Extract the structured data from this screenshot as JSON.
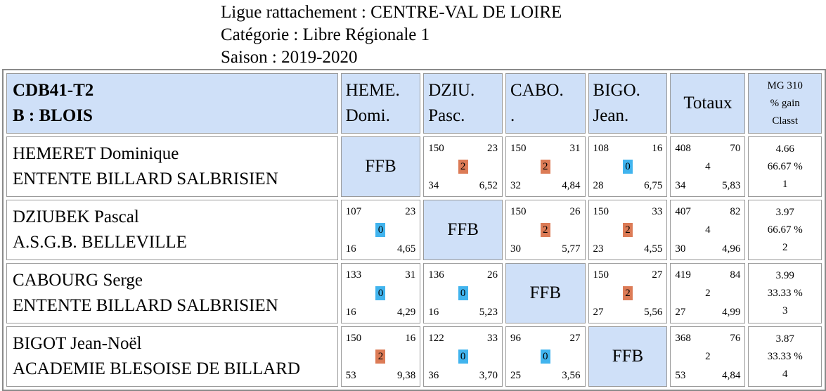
{
  "header": {
    "ligue": "Ligue rattachement : CENTRE-VAL DE LOIRE",
    "categorie": "Catégorie : Libre Régionale 1",
    "saison": "Saison : 2019-2020"
  },
  "table": {
    "team_code": "CDB41-T2",
    "team_name": "B : BLOIS",
    "columns": [
      {
        "l1": "HEME.",
        "l2": "Domi."
      },
      {
        "l1": "DZIU.",
        "l2": "Pasc."
      },
      {
        "l1": "CABO.",
        "l2": "."
      },
      {
        "l1": "BIGO.",
        "l2": "Jean."
      }
    ],
    "totals_label": "Totaux",
    "stats_header": {
      "l1": "MG 310",
      "l2": "% gain",
      "l3": "Classt"
    },
    "rows": [
      {
        "name": "HEMERET Dominique",
        "club": "ENTENTE BILLARD SALBRISIEN",
        "cells": [
          {
            "ffb": "FFB"
          },
          {
            "tl": "150",
            "tr": "23",
            "mid": "2",
            "bl": "34",
            "br": "6,52",
            "res": "win"
          },
          {
            "tl": "150",
            "tr": "31",
            "mid": "2",
            "bl": "32",
            "br": "4,84",
            "res": "win"
          },
          {
            "tl": "108",
            "tr": "16",
            "mid": "0",
            "bl": "28",
            "br": "6,75",
            "res": "loss"
          }
        ],
        "total": {
          "tl": "408",
          "tr": "70",
          "mid": "4",
          "bl": "34",
          "br": "5,83"
        },
        "stats": {
          "mg": "4.66",
          "pct": "66.67 %",
          "rank": "1"
        }
      },
      {
        "name": "DZIUBEK Pascal",
        "club": "A.S.G.B. BELLEVILLE",
        "cells": [
          {
            "tl": "107",
            "tr": "23",
            "mid": "0",
            "bl": "16",
            "br": "4,65",
            "res": "loss"
          },
          {
            "ffb": "FFB"
          },
          {
            "tl": "150",
            "tr": "26",
            "mid": "2",
            "bl": "30",
            "br": "5,77",
            "res": "win"
          },
          {
            "tl": "150",
            "tr": "33",
            "mid": "2",
            "bl": "23",
            "br": "4,55",
            "res": "win"
          }
        ],
        "total": {
          "tl": "407",
          "tr": "82",
          "mid": "4",
          "bl": "30",
          "br": "4,96"
        },
        "stats": {
          "mg": "3.97",
          "pct": "66.67 %",
          "rank": "2"
        }
      },
      {
        "name": "CABOURG Serge",
        "club": "ENTENTE BILLARD SALBRISIEN",
        "cells": [
          {
            "tl": "133",
            "tr": "31",
            "mid": "0",
            "bl": "16",
            "br": "4,29",
            "res": "loss"
          },
          {
            "tl": "136",
            "tr": "26",
            "mid": "0",
            "bl": "16",
            "br": "5,23",
            "res": "loss"
          },
          {
            "ffb": "FFB"
          },
          {
            "tl": "150",
            "tr": "27",
            "mid": "2",
            "bl": "27",
            "br": "5,56",
            "res": "win"
          }
        ],
        "total": {
          "tl": "419",
          "tr": "84",
          "mid": "2",
          "bl": "27",
          "br": "4,99"
        },
        "stats": {
          "mg": "3.99",
          "pct": "33.33 %",
          "rank": "3"
        }
      },
      {
        "name": "BIGOT Jean-Noël",
        "club": "ACADEMIE BLESOISE DE BILLARD",
        "cells": [
          {
            "tl": "150",
            "tr": "16",
            "mid": "2",
            "bl": "53",
            "br": "9,38",
            "res": "win"
          },
          {
            "tl": "122",
            "tr": "33",
            "mid": "0",
            "bl": "36",
            "br": "3,70",
            "res": "loss"
          },
          {
            "tl": "96",
            "tr": "27",
            "mid": "0",
            "bl": "25",
            "br": "3,56",
            "res": "loss"
          },
          {
            "ffb": "FFB"
          }
        ],
        "total": {
          "tl": "368",
          "tr": "76",
          "mid": "2",
          "bl": "53",
          "br": "4,84"
        },
        "stats": {
          "mg": "3.87",
          "pct": "33.33 %",
          "rank": "4"
        }
      }
    ]
  },
  "colors": {
    "header_bg": "#cfe0f8",
    "win_badge": "#dc7b56",
    "loss_badge": "#41b4ee"
  }
}
